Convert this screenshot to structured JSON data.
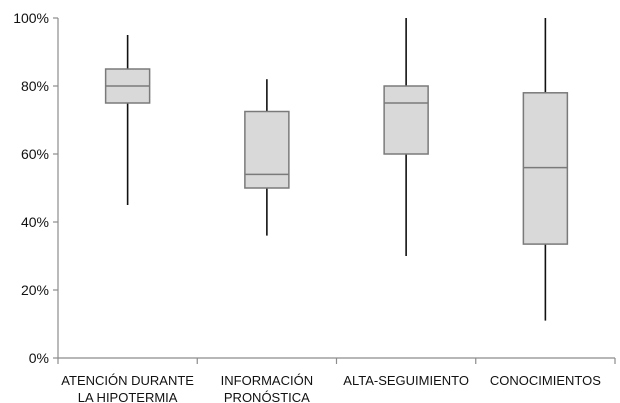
{
  "chart_data": {
    "type": "box",
    "title": "",
    "xlabel": "",
    "ylabel": "",
    "ylim": [
      0,
      100
    ],
    "y_ticks": [
      "0%",
      "20%",
      "40%",
      "60%",
      "80%",
      "100%"
    ],
    "y_tick_values": [
      0,
      20,
      40,
      60,
      80,
      100
    ],
    "categories": [
      [
        "ATENCIÓN DURANTE",
        "LA HIPOTERMIA"
      ],
      [
        "INFORMACIÓN",
        "PRONÓSTICA"
      ],
      [
        "ALTA-SEGUIMIENTO"
      ],
      [
        "CONOCIMIENTOS"
      ]
    ],
    "boxes": [
      {
        "min": 45,
        "q1": 75,
        "median": 80,
        "q3": 85,
        "max": 95
      },
      {
        "min": 36,
        "q1": 50,
        "median": 54,
        "q3": 72.5,
        "max": 82
      },
      {
        "min": 30,
        "q1": 60,
        "median": 75,
        "q3": 80,
        "max": 100
      },
      {
        "min": 11,
        "q1": 33.5,
        "median": 56,
        "q3": 78,
        "max": 100
      }
    ],
    "box_fill": "#d9d9d9",
    "box_stroke": "#7a7a7a",
    "whisker_color": "#111111",
    "axis_color": "#8c8c8c",
    "grid": false
  }
}
